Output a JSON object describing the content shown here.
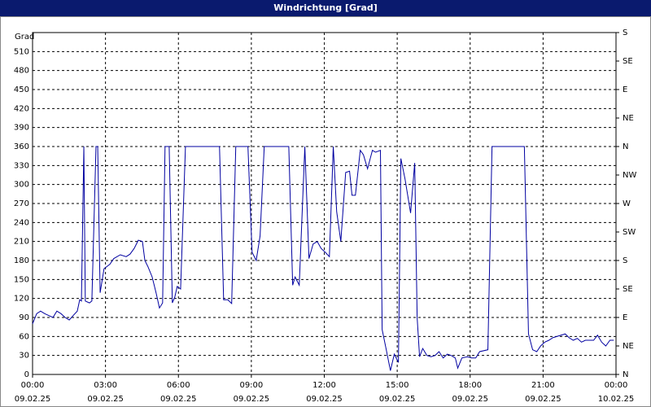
{
  "chart_data": {
    "type": "line",
    "title": "Windrichtung [Grad]",
    "y_label": "Grad",
    "x": [
      0,
      0.17,
      0.33,
      0.5,
      0.67,
      0.84,
      1.0,
      1.17,
      1.34,
      1.51,
      1.67,
      1.84,
      1.94,
      2.01,
      2.11,
      2.17,
      2.34,
      2.44,
      2.61,
      2.68,
      2.78,
      2.94,
      3.18,
      3.34,
      3.61,
      3.85,
      4.01,
      4.18,
      4.35,
      4.52,
      4.62,
      4.75,
      4.92,
      5.08,
      5.22,
      5.35,
      5.45,
      5.62,
      5.75,
      5.85,
      5.95,
      6.09,
      6.29,
      6.42,
      7.69,
      7.86,
      8.03,
      8.19,
      8.36,
      8.86,
      9.03,
      9.2,
      9.36,
      9.53,
      10.54,
      10.7,
      10.8,
      10.97,
      11.2,
      11.37,
      11.54,
      11.71,
      11.87,
      12.04,
      12.21,
      12.37,
      12.51,
      12.68,
      12.88,
      13.04,
      13.14,
      13.28,
      13.48,
      13.61,
      13.78,
      13.98,
      14.11,
      14.31,
      14.38,
      14.55,
      14.72,
      14.88,
      15.05,
      15.15,
      15.32,
      15.55,
      15.72,
      15.82,
      15.92,
      16.05,
      16.22,
      16.39,
      16.56,
      16.72,
      16.89,
      17.06,
      17.22,
      17.39,
      17.49,
      17.66,
      17.89,
      18.06,
      18.23,
      18.39,
      18.73,
      18.9,
      20.23,
      20.4,
      20.57,
      20.74,
      20.9,
      21.07,
      21.24,
      21.4,
      21.74,
      21.91,
      22.07,
      22.24,
      22.41,
      22.58,
      22.74,
      23.08,
      23.24,
      23.41,
      23.58,
      23.75,
      23.91
    ],
    "series": [
      {
        "name": "Windrichtung",
        "color": "#0000a0",
        "values": [
          80,
          96,
          100,
          96,
          93,
          90,
          100,
          96,
          90,
          86,
          93,
          100,
          118,
          116,
          360,
          116,
          113,
          116,
          360,
          360,
          129,
          167,
          174,
          183,
          189,
          186,
          190,
          199,
          212,
          210,
          180,
          170,
          154,
          129,
          105,
          113,
          360,
          360,
          113,
          122,
          139,
          135,
          360,
          360,
          360,
          118,
          118,
          112,
          360,
          360,
          193,
          180,
          219,
          360,
          360,
          141,
          154,
          141,
          360,
          183,
          206,
          210,
          199,
          193,
          186,
          360,
          257,
          210,
          319,
          321,
          283,
          283,
          354,
          347,
          325,
          354,
          351,
          354,
          71,
          39,
          6,
          32,
          19,
          341,
          309,
          255,
          334,
          90,
          28,
          41,
          30,
          28,
          30,
          36,
          26,
          32,
          30,
          26,
          10,
          26,
          28,
          26,
          26,
          36,
          39,
          360,
          360,
          64,
          39,
          36,
          45,
          51,
          54,
          58,
          62,
          64,
          58,
          54,
          57,
          51,
          54,
          54,
          62,
          51,
          45,
          54,
          54
        ]
      }
    ],
    "xlim": [
      0,
      24
    ],
    "xticks": [
      {
        "value": 0,
        "label": "00:00"
      },
      {
        "value": 3,
        "label": "03:00"
      },
      {
        "value": 6,
        "label": "06:00"
      },
      {
        "value": 9,
        "label": "09:00"
      },
      {
        "value": 12,
        "label": "12:00"
      },
      {
        "value": 15,
        "label": "15:00"
      },
      {
        "value": 18,
        "label": "18:00"
      },
      {
        "value": 21,
        "label": "21:00"
      },
      {
        "value": 24,
        "label": "00:00"
      }
    ],
    "x_dates": [
      "09.02.25",
      "09.02.25",
      "09.02.25",
      "09.02.25",
      "09.02.25",
      "09.02.25",
      "09.02.25",
      "09.02.25",
      "10.02.25"
    ],
    "ylim": [
      0,
      540
    ],
    "yticks": [
      0,
      30,
      60,
      90,
      120,
      150,
      180,
      210,
      240,
      270,
      300,
      330,
      360,
      390,
      420,
      450,
      480,
      510
    ],
    "y2lim": [
      0,
      540
    ],
    "y2ticks": [
      {
        "value": 0,
        "label": "N"
      },
      {
        "value": 45,
        "label": "NE"
      },
      {
        "value": 90,
        "label": "E"
      },
      {
        "value": 135,
        "label": "SE"
      },
      {
        "value": 180,
        "label": "S"
      },
      {
        "value": 225,
        "label": "SW"
      },
      {
        "value": 270,
        "label": "W"
      },
      {
        "value": 315,
        "label": "NW"
      },
      {
        "value": 360,
        "label": "N"
      },
      {
        "value": 405,
        "label": "NE"
      },
      {
        "value": 450,
        "label": "E"
      },
      {
        "value": 495,
        "label": "SE"
      },
      {
        "value": 540,
        "label": "S"
      }
    ],
    "grid": true
  }
}
